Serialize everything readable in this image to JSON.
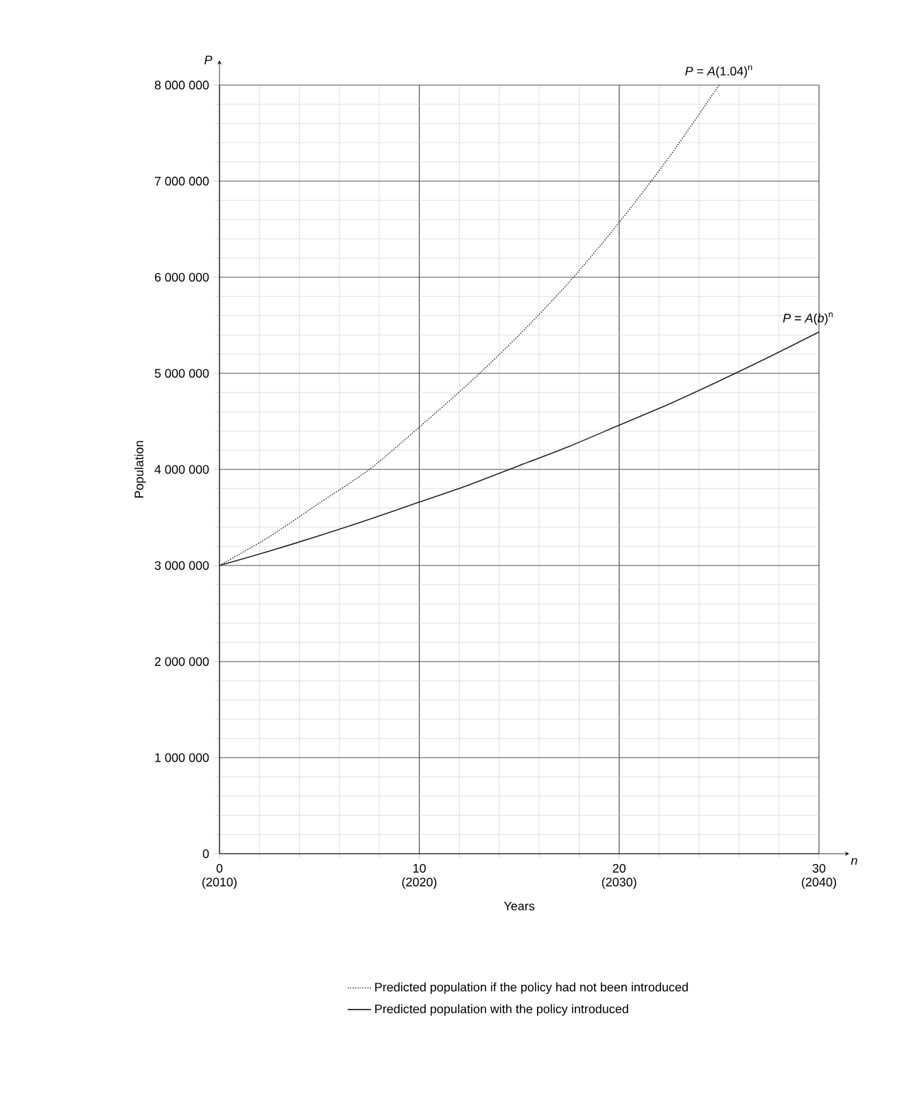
{
  "chart_data": {
    "type": "line",
    "xlabel": "Years",
    "ylabel": "Population",
    "x": [
      0,
      2.5,
      5,
      7.5,
      10,
      12.5,
      15,
      17.5,
      20,
      22.5,
      25,
      27.5,
      30
    ],
    "series": [
      {
        "name": "Predicted population if the policy had not been introduced",
        "color": "#333333",
        "line_style": "dotted",
        "values": [
          3000000,
          3300000,
          3650000,
          4000000,
          4440000,
          4900000,
          5400000,
          5950000,
          6570000,
          7250000,
          8000000,
          null,
          null
        ]
      },
      {
        "name": "Predicted population with the policy introduced",
        "color": "#222222",
        "line_style": "solid",
        "values": [
          3000000,
          3150000,
          3310000,
          3480000,
          3660000,
          3840000,
          4040000,
          4240000,
          4460000,
          4680000,
          4920000,
          5170000,
          5430000
        ]
      }
    ],
    "xlim": [
      0,
      30
    ],
    "ylim": [
      0,
      8000000
    ],
    "xticks": [
      0,
      10,
      20,
      30
    ],
    "x2lim": [
      2010,
      2040
    ],
    "x2ticks": [
      {
        "value": 2010,
        "label": "(2010)"
      },
      {
        "value": 2020,
        "label": "(2020)"
      },
      {
        "value": 2030,
        "label": "(2030)"
      },
      {
        "value": 2040,
        "label": "(2040)"
      }
    ],
    "yticks": [
      0,
      {
        "value": 1000000,
        "label": "1 000 000"
      },
      {
        "value": 2000000,
        "label": "2 000 000"
      },
      {
        "value": 3000000,
        "label": "3 000 000"
      },
      {
        "value": 4000000,
        "label": "4 000 000"
      },
      {
        "value": 5000000,
        "label": "5 000 000"
      },
      {
        "value": 6000000,
        "label": "6 000 000"
      },
      {
        "value": 7000000,
        "label": "7 000 000"
      },
      {
        "value": 8000000,
        "label": "8 000 000"
      }
    ],
    "annotations": [
      {
        "text": "*P* = *A*(1.04)$^{n}$",
        "x": 25,
        "y": 8000000
      },
      {
        "text": "*P* = *A*(*b*)$^{n}$",
        "x": 30,
        "y": 5430000
      },
      "*P*",
      "*n*"
    ],
    "grid": true,
    "legend": "bottom",
    "marker": "none"
  }
}
